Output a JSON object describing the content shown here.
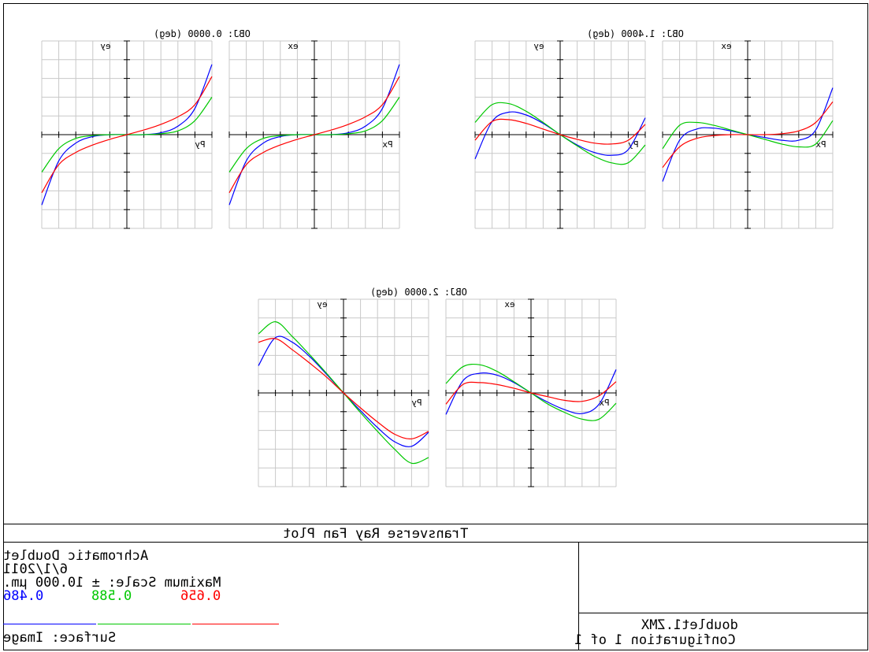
{
  "colors": {
    "red": "#ff0000",
    "green": "#00c800",
    "blue": "#0000ff",
    "grid": "#c8c8c8"
  },
  "plot_title": "Transverse Ray Fan Plot",
  "footer": {
    "lens": "Achromatic Doublet",
    "date": "6/1/2011",
    "scale": "Maximum Scale: ± 10.000 µm.",
    "wavelengths": [
      {
        "value": "0.486",
        "color": "#0000ff"
      },
      {
        "value": "0.588",
        "color": "#00c800"
      },
      {
        "value": "0.656",
        "color": "#ff0000"
      }
    ],
    "surface": "Surface: Image",
    "file": "doublet1.ZMX",
    "configuration": "Configuration 1 of 1"
  },
  "chart_data": [
    {
      "type": "line",
      "field_label": "OBJ: 0.0000 (deg)",
      "panels": [
        {
          "ylabel": "ey",
          "xlabel": "Py",
          "ylim": [
            -10,
            10
          ],
          "xlim": [
            -1,
            1
          ],
          "series": [
            {
              "color": "#0000ff",
              "x": [
                -1,
                -0.8,
                -0.6,
                -0.4,
                -0.2,
                0,
                0.2,
                0.4,
                0.6,
                0.8,
                1
              ],
              "y": [
                -7.5,
                -2.8,
                -0.9,
                -0.2,
                0,
                0,
                0,
                0.2,
                0.9,
                2.8,
                7.5
              ]
            },
            {
              "color": "#00c800",
              "x": [
                -1,
                -0.8,
                -0.6,
                -0.4,
                -0.2,
                0,
                0.2,
                0.4,
                0.6,
                0.8,
                1
              ],
              "y": [
                -4,
                -1.5,
                -0.4,
                -0.1,
                0,
                0,
                0,
                0.1,
                0.4,
                1.5,
                4
              ]
            },
            {
              "color": "#ff0000",
              "x": [
                -1,
                -0.8,
                -0.6,
                -0.4,
                -0.2,
                0,
                0.2,
                0.4,
                0.6,
                0.8,
                1
              ],
              "y": [
                -6.2,
                -3.2,
                -1.9,
                -1.1,
                -0.5,
                0,
                0.5,
                1.1,
                1.9,
                3.2,
                6.2
              ]
            }
          ]
        },
        {
          "ylabel": "ex",
          "xlabel": "Px",
          "ylim": [
            -10,
            10
          ],
          "xlim": [
            -1,
            1
          ],
          "series": [
            {
              "color": "#0000ff",
              "x": [
                -1,
                -0.8,
                -0.6,
                -0.4,
                -0.2,
                0,
                0.2,
                0.4,
                0.6,
                0.8,
                1
              ],
              "y": [
                -7.5,
                -2.8,
                -0.9,
                -0.2,
                0,
                0,
                0,
                0.2,
                0.9,
                2.8,
                7.5
              ]
            },
            {
              "color": "#00c800",
              "x": [
                -1,
                -0.8,
                -0.6,
                -0.4,
                -0.2,
                0,
                0.2,
                0.4,
                0.6,
                0.8,
                1
              ],
              "y": [
                -4,
                -1.5,
                -0.4,
                -0.1,
                0,
                0,
                0,
                0.1,
                0.4,
                1.5,
                4
              ]
            },
            {
              "color": "#ff0000",
              "x": [
                -1,
                -0.8,
                -0.6,
                -0.4,
                -0.2,
                0,
                0.2,
                0.4,
                0.6,
                0.8,
                1
              ],
              "y": [
                -6.2,
                -3.2,
                -1.9,
                -1.1,
                -0.5,
                0,
                0.5,
                1.1,
                1.9,
                3.2,
                6.2
              ]
            }
          ]
        }
      ]
    },
    {
      "type": "line",
      "field_label": "OBJ: 1.4000 (deg)",
      "panels": [
        {
          "ylabel": "ey",
          "xlabel": "Py",
          "ylim": [
            -10,
            10
          ],
          "xlim": [
            -1,
            1
          ],
          "series": [
            {
              "color": "#0000ff",
              "x": [
                -1,
                -0.8,
                -0.6,
                -0.4,
                -0.2,
                0,
                0.2,
                0.4,
                0.6,
                0.8,
                1
              ],
              "y": [
                -2.6,
                1.4,
                2.4,
                2.1,
                1.2,
                0,
                -1.1,
                -1.9,
                -2.2,
                -1.6,
                1.8
              ]
            },
            {
              "color": "#00c800",
              "x": [
                -1,
                -0.8,
                -0.6,
                -0.4,
                -0.2,
                0,
                0.2,
                0.4,
                0.6,
                0.8,
                1
              ],
              "y": [
                1.3,
                3.2,
                3.3,
                2.5,
                1.3,
                0,
                -1.2,
                -2.3,
                -3.0,
                -3.0,
                -1.1
              ]
            },
            {
              "color": "#ff0000",
              "x": [
                -1,
                -0.8,
                -0.6,
                -0.4,
                -0.2,
                0,
                0.2,
                0.4,
                0.6,
                0.8,
                1
              ],
              "y": [
                -0.6,
                1.4,
                1.6,
                1.2,
                0.6,
                0,
                -0.5,
                -0.9,
                -1.0,
                -0.6,
                1.1
              ]
            }
          ]
        },
        {
          "ylabel": "ex",
          "xlabel": "Px",
          "ylim": [
            -10,
            10
          ],
          "xlim": [
            -1,
            1
          ],
          "series": [
            {
              "color": "#0000ff",
              "x": [
                -1,
                -0.8,
                -0.6,
                -0.4,
                -0.2,
                0,
                0.2,
                0.4,
                0.6,
                0.8,
                1
              ],
              "y": [
                -5,
                -0.6,
                0.6,
                0.7,
                0.4,
                0,
                -0.3,
                -0.6,
                -0.6,
                0.5,
                5
              ]
            },
            {
              "color": "#00c800",
              "x": [
                -1,
                -0.8,
                -0.6,
                -0.4,
                -0.2,
                0,
                0.2,
                0.4,
                0.6,
                0.8,
                1
              ],
              "y": [
                -1.5,
                1.0,
                1.3,
                1.0,
                0.5,
                0,
                -0.5,
                -1.0,
                -1.3,
                -1.0,
                1.5
              ]
            },
            {
              "color": "#ff0000",
              "x": [
                -1,
                -0.8,
                -0.6,
                -0.4,
                -0.2,
                0,
                0.2,
                0.4,
                0.6,
                0.8,
                1
              ],
              "y": [
                -3.5,
                -1.3,
                -0.4,
                -0.1,
                0,
                0,
                0,
                0.1,
                0.4,
                1.3,
                3.5
              ]
            }
          ]
        }
      ]
    },
    {
      "type": "line",
      "field_label": "OBJ: 2.0000 (deg)",
      "panels": [
        {
          "ylabel": "ey",
          "xlabel": "Py",
          "ylim": [
            -10,
            10
          ],
          "xlim": [
            -1,
            1
          ],
          "series": [
            {
              "color": "#0000ff",
              "x": [
                -1,
                -0.8,
                -0.6,
                -0.4,
                -0.2,
                0,
                0.2,
                0.4,
                0.6,
                0.8,
                1
              ],
              "y": [
                2.9,
                5.9,
                5.4,
                3.9,
                2.0,
                0,
                -1.9,
                -3.7,
                -5.2,
                -5.7,
                -4.2
              ]
            },
            {
              "color": "#00c800",
              "x": [
                -1,
                -0.8,
                -0.6,
                -0.4,
                -0.2,
                0,
                0.2,
                0.4,
                0.6,
                0.8,
                1
              ],
              "y": [
                6.3,
                7.6,
                6.0,
                4.1,
                2.1,
                0,
                -2.1,
                -4.1,
                -6.0,
                -7.5,
                -6.9
              ]
            },
            {
              "color": "#ff0000",
              "x": [
                -1,
                -0.8,
                -0.6,
                -0.4,
                -0.2,
                0,
                0.2,
                0.4,
                0.6,
                0.8,
                1
              ],
              "y": [
                5.4,
                5.8,
                4.6,
                3.2,
                1.7,
                0,
                -1.6,
                -3.1,
                -4.4,
                -4.9,
                -4.1
              ]
            }
          ]
        },
        {
          "ylabel": "ex",
          "xlabel": "Px",
          "ylim": [
            -10,
            10
          ],
          "xlim": [
            -1,
            1
          ],
          "series": [
            {
              "color": "#0000ff",
              "x": [
                -1,
                -0.8,
                -0.6,
                -0.4,
                -0.2,
                0,
                0.2,
                0.4,
                0.6,
                0.8,
                1
              ],
              "y": [
                -2.3,
                1.3,
                2.1,
                1.9,
                1.1,
                0,
                -1.0,
                -1.8,
                -2.2,
                -1.2,
                2.5
              ]
            },
            {
              "color": "#00c800",
              "x": [
                -1,
                -0.8,
                -0.6,
                -0.4,
                -0.2,
                0,
                0.2,
                0.4,
                0.6,
                0.8,
                1
              ],
              "y": [
                1.0,
                2.8,
                3.0,
                2.3,
                1.2,
                0,
                -1.2,
                -2.1,
                -2.8,
                -2.8,
                -1.1
              ]
            },
            {
              "color": "#ff0000",
              "x": [
                -1,
                -0.8,
                -0.6,
                -0.4,
                -0.2,
                0,
                0.2,
                0.4,
                0.6,
                0.8,
                1
              ],
              "y": [
                -1.2,
                0.9,
                1.1,
                0.9,
                0.5,
                0,
                -0.4,
                -0.8,
                -0.9,
                -0.3,
                1.2
              ]
            }
          ]
        }
      ]
    }
  ]
}
